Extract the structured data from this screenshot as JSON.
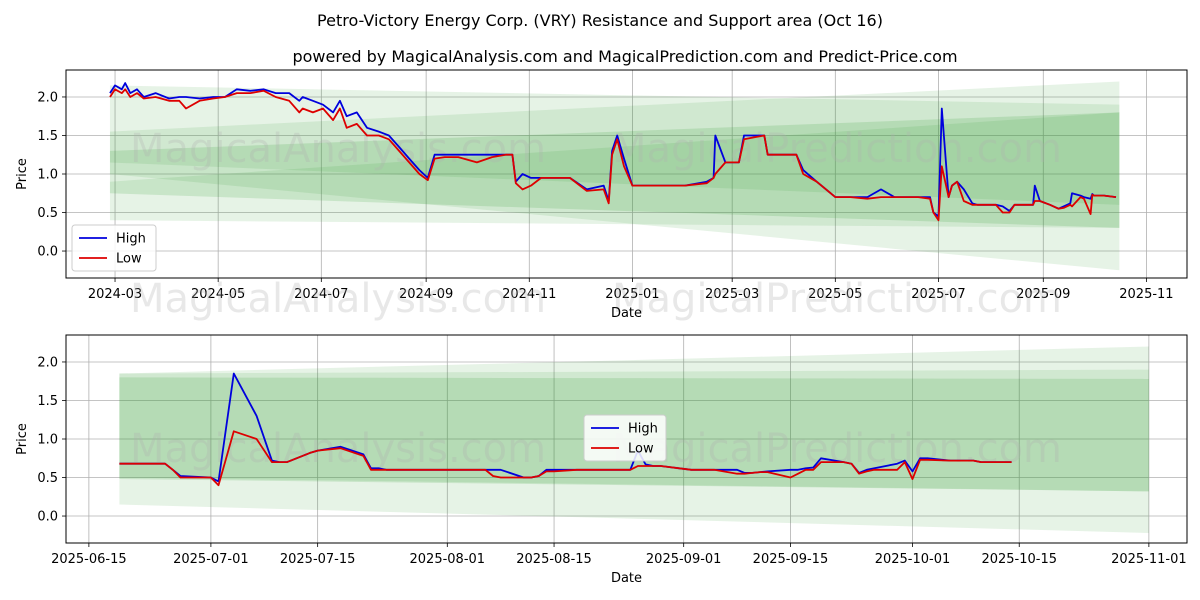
{
  "title": "Petro-Victory Energy Corp. (VRY) Resistance and Support area (Oct 16)",
  "subtitle": "powered by MagicalAnalysis.com and MagicalPrediction.com and Predict-Price.com",
  "watermarks": [
    "MagicalAnalysis.com",
    "MagicalPrediction.com"
  ],
  "colors": {
    "high": "#0000dd",
    "low": "#dd0000",
    "band": "#2e9b2e",
    "grid": "#b0b0b0"
  },
  "chart_data": [
    {
      "type": "line",
      "name": "full-period",
      "xlabel": "Date",
      "ylabel": "Price",
      "xlim": [
        "2024-02-01",
        "2025-11-25"
      ],
      "ylim": [
        -0.35,
        2.35
      ],
      "x_ticks": [
        "2024-03",
        "2024-05",
        "2024-07",
        "2024-09",
        "2024-11",
        "2025-01",
        "2025-03",
        "2025-05",
        "2025-07",
        "2025-09",
        "2025-11"
      ],
      "y_ticks": [
        "0.0",
        "0.5",
        "1.0",
        "1.5",
        "2.0"
      ],
      "legend": {
        "position": "lower-left",
        "entries": [
          "High",
          "Low"
        ]
      },
      "bands": [
        {
          "x": [
            "2024-02-27",
            "2025-10-16"
          ],
          "upper": [
            2.15,
            1.9
          ],
          "lower": [
            1.15,
            0.6
          ],
          "alpha": 0.12
        },
        {
          "x": [
            "2024-02-27",
            "2025-10-16"
          ],
          "upper": [
            1.55,
            2.2
          ],
          "lower": [
            1.0,
            -0.25
          ],
          "alpha": 0.12
        },
        {
          "x": [
            "2024-02-27",
            "2025-10-16"
          ],
          "upper": [
            0.9,
            1.8
          ],
          "lower": [
            0.4,
            0.3
          ],
          "alpha": 0.12
        },
        {
          "x": [
            "2024-02-27",
            "2025-10-16"
          ],
          "upper": [
            1.3,
            1.8
          ],
          "lower": [
            0.75,
            0.3
          ],
          "alpha": 0.16
        }
      ],
      "series": [
        {
          "name": "High",
          "x": [
            "2024-02-27",
            "2024-03-01",
            "2024-03-05",
            "2024-03-07",
            "2024-03-10",
            "2024-03-14",
            "2024-03-18",
            "2024-03-25",
            "2024-04-02",
            "2024-04-08",
            "2024-04-12",
            "2024-04-20",
            "2024-04-28",
            "2024-05-05",
            "2024-05-12",
            "2024-05-20",
            "2024-05-28",
            "2024-06-04",
            "2024-06-12",
            "2024-06-18",
            "2024-06-20",
            "2024-06-26",
            "2024-07-02",
            "2024-07-08",
            "2024-07-12",
            "2024-07-16",
            "2024-07-22",
            "2024-07-28",
            "2024-08-04",
            "2024-08-10",
            "2024-08-16",
            "2024-08-22",
            "2024-08-28",
            "2024-09-02",
            "2024-09-06",
            "2024-09-12",
            "2024-09-20",
            "2024-10-01",
            "2024-10-10",
            "2024-10-18",
            "2024-10-22",
            "2024-10-24",
            "2024-10-28",
            "2024-11-02",
            "2024-11-08",
            "2024-11-15",
            "2024-11-25",
            "2024-12-05",
            "2024-12-15",
            "2024-12-18",
            "2024-12-20",
            "2024-12-23",
            "2024-12-27",
            "2025-01-01",
            "2025-01-15",
            "2025-02-01",
            "2025-02-14",
            "2025-02-18",
            "2025-02-19",
            "2025-02-25",
            "2025-03-05",
            "2025-03-08",
            "2025-03-15",
            "2025-03-20",
            "2025-03-22",
            "2025-04-01",
            "2025-04-08",
            "2025-04-12",
            "2025-04-20",
            "2025-05-01",
            "2025-05-10",
            "2025-05-20",
            "2025-05-28",
            "2025-06-05",
            "2025-06-12",
            "2025-06-19",
            "2025-06-26",
            "2025-06-28",
            "2025-07-01",
            "2025-07-03",
            "2025-07-07",
            "2025-07-09",
            "2025-07-12",
            "2025-07-16",
            "2025-07-21",
            "2025-07-24",
            "2025-08-04",
            "2025-08-08",
            "2025-08-12",
            "2025-08-15",
            "2025-08-26",
            "2025-08-27",
            "2025-08-30",
            "2025-09-05",
            "2025-09-10",
            "2025-09-13",
            "2025-09-17",
            "2025-09-18",
            "2025-09-23",
            "2025-09-25",
            "2025-09-29",
            "2025-09-30",
            "2025-10-01",
            "2025-10-03",
            "2025-10-07",
            "2025-10-14"
          ],
          "y": [
            2.05,
            2.15,
            2.1,
            2.18,
            2.05,
            2.1,
            2.0,
            2.05,
            1.98,
            2.0,
            2.0,
            1.98,
            2.0,
            2.0,
            2.1,
            2.08,
            2.1,
            2.05,
            2.05,
            1.95,
            2.0,
            1.95,
            1.9,
            1.8,
            1.95,
            1.75,
            1.8,
            1.6,
            1.55,
            1.5,
            1.35,
            1.2,
            1.05,
            0.95,
            1.25,
            1.25,
            1.25,
            1.25,
            1.25,
            1.25,
            1.25,
            0.9,
            1.0,
            0.95,
            0.95,
            0.95,
            0.95,
            0.8,
            0.85,
            0.65,
            1.3,
            1.5,
            1.2,
            0.85,
            0.85,
            0.85,
            0.9,
            0.95,
            1.5,
            1.15,
            1.15,
            1.5,
            1.5,
            1.5,
            1.25,
            1.25,
            1.25,
            1.05,
            0.9,
            0.7,
            0.7,
            0.7,
            0.8,
            0.7,
            0.7,
            0.7,
            0.7,
            0.5,
            0.45,
            1.85,
            0.7,
            0.85,
            0.9,
            0.8,
            0.62,
            0.6,
            0.6,
            0.58,
            0.52,
            0.6,
            0.6,
            0.85,
            0.65,
            0.6,
            0.55,
            0.58,
            0.62,
            0.75,
            0.72,
            0.7,
            0.68,
            0.74,
            0.72,
            0.72,
            0.72,
            0.7
          ]
        },
        {
          "name": "Low",
          "x": [
            "2024-02-27",
            "2024-03-01",
            "2024-03-05",
            "2024-03-07",
            "2024-03-10",
            "2024-03-14",
            "2024-03-18",
            "2024-03-25",
            "2024-04-02",
            "2024-04-08",
            "2024-04-12",
            "2024-04-20",
            "2024-04-28",
            "2024-05-05",
            "2024-05-12",
            "2024-05-20",
            "2024-05-28",
            "2024-06-04",
            "2024-06-12",
            "2024-06-18",
            "2024-06-20",
            "2024-06-26",
            "2024-07-02",
            "2024-07-08",
            "2024-07-12",
            "2024-07-16",
            "2024-07-22",
            "2024-07-28",
            "2024-08-04",
            "2024-08-10",
            "2024-08-16",
            "2024-08-22",
            "2024-08-28",
            "2024-09-02",
            "2024-09-06",
            "2024-09-12",
            "2024-09-20",
            "2024-10-01",
            "2024-10-10",
            "2024-10-18",
            "2024-10-22",
            "2024-10-24",
            "2024-10-28",
            "2024-11-02",
            "2024-11-08",
            "2024-11-15",
            "2024-11-25",
            "2024-12-05",
            "2024-12-15",
            "2024-12-18",
            "2024-12-20",
            "2024-12-23",
            "2024-12-27",
            "2025-01-01",
            "2025-01-15",
            "2025-02-01",
            "2025-02-14",
            "2025-02-18",
            "2025-02-19",
            "2025-02-25",
            "2025-03-05",
            "2025-03-08",
            "2025-03-15",
            "2025-03-20",
            "2025-03-22",
            "2025-04-01",
            "2025-04-08",
            "2025-04-12",
            "2025-04-20",
            "2025-05-01",
            "2025-05-10",
            "2025-05-20",
            "2025-05-28",
            "2025-06-05",
            "2025-06-12",
            "2025-06-19",
            "2025-06-26",
            "2025-06-28",
            "2025-07-01",
            "2025-07-03",
            "2025-07-07",
            "2025-07-09",
            "2025-07-12",
            "2025-07-16",
            "2025-07-21",
            "2025-07-24",
            "2025-08-04",
            "2025-08-08",
            "2025-08-12",
            "2025-08-15",
            "2025-08-26",
            "2025-08-27",
            "2025-08-30",
            "2025-09-05",
            "2025-09-10",
            "2025-09-13",
            "2025-09-17",
            "2025-09-18",
            "2025-09-23",
            "2025-09-25",
            "2025-09-29",
            "2025-09-30",
            "2025-10-01",
            "2025-10-03",
            "2025-10-07",
            "2025-10-14"
          ],
          "y": [
            2.0,
            2.1,
            2.05,
            2.1,
            2.0,
            2.05,
            1.98,
            2.0,
            1.95,
            1.95,
            1.85,
            1.95,
            1.98,
            2.0,
            2.05,
            2.05,
            2.08,
            2.0,
            1.95,
            1.8,
            1.85,
            1.8,
            1.85,
            1.7,
            1.85,
            1.6,
            1.65,
            1.5,
            1.5,
            1.45,
            1.3,
            1.15,
            1.0,
            0.92,
            1.2,
            1.22,
            1.22,
            1.15,
            1.22,
            1.25,
            1.25,
            0.88,
            0.8,
            0.85,
            0.95,
            0.95,
            0.95,
            0.78,
            0.8,
            0.62,
            1.25,
            1.45,
            1.1,
            0.85,
            0.85,
            0.85,
            0.88,
            0.95,
            1.0,
            1.15,
            1.15,
            1.45,
            1.48,
            1.5,
            1.25,
            1.25,
            1.25,
            1.0,
            0.9,
            0.7,
            0.7,
            0.68,
            0.7,
            0.7,
            0.7,
            0.7,
            0.68,
            0.5,
            0.4,
            1.1,
            0.7,
            0.85,
            0.9,
            0.65,
            0.6,
            0.6,
            0.6,
            0.5,
            0.5,
            0.6,
            0.6,
            0.65,
            0.65,
            0.6,
            0.55,
            0.56,
            0.6,
            0.58,
            0.7,
            0.68,
            0.48,
            0.73,
            0.72,
            0.72,
            0.72,
            0.7
          ]
        }
      ]
    },
    {
      "type": "line",
      "name": "zoomed-period",
      "xlabel": "Date",
      "ylabel": "Price",
      "xlim": [
        "2025-06-12",
        "2025-11-06"
      ],
      "ylim": [
        -0.35,
        2.35
      ],
      "x_ticks": [
        "2025-06-15",
        "2025-07-01",
        "2025-07-15",
        "2025-08-01",
        "2025-08-15",
        "2025-09-01",
        "2025-09-15",
        "2025-10-01",
        "2025-10-15",
        "2025-11-01"
      ],
      "y_ticks": [
        "0.0",
        "0.5",
        "1.0",
        "1.5",
        "2.0"
      ],
      "legend": {
        "position": "center",
        "entries": [
          "High",
          "Low"
        ]
      },
      "bands": [
        {
          "x": [
            "2025-06-19",
            "2025-11-01"
          ],
          "upper": [
            1.85,
            2.2
          ],
          "lower": [
            0.15,
            -0.22
          ],
          "alpha": 0.12
        },
        {
          "x": [
            "2025-06-19",
            "2025-11-01"
          ],
          "upper": [
            1.85,
            1.9
          ],
          "lower": [
            0.5,
            0.32
          ],
          "alpha": 0.12
        },
        {
          "x": [
            "2025-06-19",
            "2025-11-01"
          ],
          "upper": [
            1.8,
            1.78
          ],
          "lower": [
            0.48,
            0.32
          ],
          "alpha": 0.16
        }
      ],
      "series": [
        {
          "name": "High",
          "x": [
            "2025-06-19",
            "2025-06-25",
            "2025-06-26",
            "2025-06-27",
            "2025-07-01",
            "2025-07-02",
            "2025-07-04",
            "2025-07-07",
            "2025-07-09",
            "2025-07-10",
            "2025-07-11",
            "2025-07-14",
            "2025-07-15",
            "2025-07-18",
            "2025-07-21",
            "2025-07-22",
            "2025-07-23",
            "2025-07-24",
            "2025-07-25",
            "2025-07-28",
            "2025-07-29",
            "2025-07-30",
            "2025-08-01",
            "2025-08-04",
            "2025-08-05",
            "2025-08-06",
            "2025-08-07",
            "2025-08-08",
            "2025-08-11",
            "2025-08-12",
            "2025-08-13",
            "2025-08-14",
            "2025-08-15",
            "2025-08-18",
            "2025-08-19",
            "2025-08-20",
            "2025-08-21",
            "2025-08-22",
            "2025-08-25",
            "2025-08-26",
            "2025-08-27",
            "2025-08-28",
            "2025-08-29",
            "2025-09-02",
            "2025-09-03",
            "2025-09-04",
            "2025-09-05",
            "2025-09-08",
            "2025-09-09",
            "2025-09-10",
            "2025-09-11",
            "2025-09-12",
            "2025-09-15",
            "2025-09-16",
            "2025-09-17",
            "2025-09-18",
            "2025-09-19",
            "2025-09-22",
            "2025-09-23",
            "2025-09-24",
            "2025-09-25",
            "2025-09-26",
            "2025-09-29",
            "2025-09-30",
            "2025-10-01",
            "2025-10-02",
            "2025-10-03",
            "2025-10-06",
            "2025-10-07",
            "2025-10-08",
            "2025-10-09",
            "2025-10-10",
            "2025-10-13",
            "2025-10-14"
          ],
          "y": [
            0.68,
            0.68,
            0.6,
            0.52,
            0.5,
            0.45,
            1.85,
            1.3,
            0.72,
            0.7,
            0.7,
            0.82,
            0.85,
            0.9,
            0.8,
            0.62,
            0.62,
            0.6,
            0.6,
            0.6,
            0.6,
            0.6,
            0.6,
            0.6,
            0.6,
            0.6,
            0.6,
            0.6,
            0.5,
            0.5,
            0.52,
            0.6,
            0.6,
            0.6,
            0.6,
            0.6,
            0.6,
            0.6,
            0.6,
            0.85,
            0.67,
            0.65,
            0.65,
            0.6,
            0.6,
            0.6,
            0.6,
            0.6,
            0.56,
            0.56,
            0.57,
            0.58,
            0.6,
            0.6,
            0.62,
            0.63,
            0.75,
            0.7,
            0.68,
            0.56,
            0.6,
            0.62,
            0.68,
            0.72,
            0.58,
            0.75,
            0.75,
            0.72,
            0.72,
            0.72,
            0.72,
            0.7,
            0.7,
            0.7
          ]
        },
        {
          "name": "Low",
          "x": [
            "2025-06-19",
            "2025-06-25",
            "2025-06-26",
            "2025-06-27",
            "2025-07-01",
            "2025-07-02",
            "2025-07-04",
            "2025-07-07",
            "2025-07-09",
            "2025-07-10",
            "2025-07-11",
            "2025-07-14",
            "2025-07-15",
            "2025-07-18",
            "2025-07-21",
            "2025-07-22",
            "2025-07-23",
            "2025-07-24",
            "2025-07-25",
            "2025-07-28",
            "2025-07-29",
            "2025-07-30",
            "2025-08-01",
            "2025-08-04",
            "2025-08-05",
            "2025-08-06",
            "2025-08-07",
            "2025-08-08",
            "2025-08-11",
            "2025-08-12",
            "2025-08-13",
            "2025-08-14",
            "2025-08-15",
            "2025-08-18",
            "2025-08-19",
            "2025-08-20",
            "2025-08-21",
            "2025-08-22",
            "2025-08-25",
            "2025-08-26",
            "2025-08-27",
            "2025-08-28",
            "2025-08-29",
            "2025-09-02",
            "2025-09-03",
            "2025-09-04",
            "2025-09-05",
            "2025-09-08",
            "2025-09-09",
            "2025-09-10",
            "2025-09-11",
            "2025-09-12",
            "2025-09-15",
            "2025-09-16",
            "2025-09-17",
            "2025-09-18",
            "2025-09-19",
            "2025-09-22",
            "2025-09-23",
            "2025-09-24",
            "2025-09-25",
            "2025-09-26",
            "2025-09-29",
            "2025-09-30",
            "2025-10-01",
            "2025-10-02",
            "2025-10-03",
            "2025-10-06",
            "2025-10-07",
            "2025-10-08",
            "2025-10-09",
            "2025-10-10",
            "2025-10-13",
            "2025-10-14"
          ],
          "y": [
            0.68,
            0.68,
            0.6,
            0.5,
            0.5,
            0.4,
            1.1,
            1.0,
            0.7,
            0.7,
            0.7,
            0.82,
            0.85,
            0.88,
            0.78,
            0.6,
            0.6,
            0.6,
            0.6,
            0.6,
            0.6,
            0.6,
            0.6,
            0.6,
            0.6,
            0.6,
            0.52,
            0.5,
            0.5,
            0.5,
            0.52,
            0.58,
            0.58,
            0.6,
            0.6,
            0.6,
            0.6,
            0.6,
            0.6,
            0.65,
            0.65,
            0.65,
            0.65,
            0.6,
            0.6,
            0.6,
            0.6,
            0.55,
            0.55,
            0.56,
            0.57,
            0.57,
            0.5,
            0.55,
            0.6,
            0.6,
            0.7,
            0.7,
            0.68,
            0.55,
            0.58,
            0.6,
            0.6,
            0.7,
            0.48,
            0.73,
            0.73,
            0.72,
            0.72,
            0.72,
            0.72,
            0.7,
            0.7,
            0.7
          ]
        }
      ]
    }
  ]
}
